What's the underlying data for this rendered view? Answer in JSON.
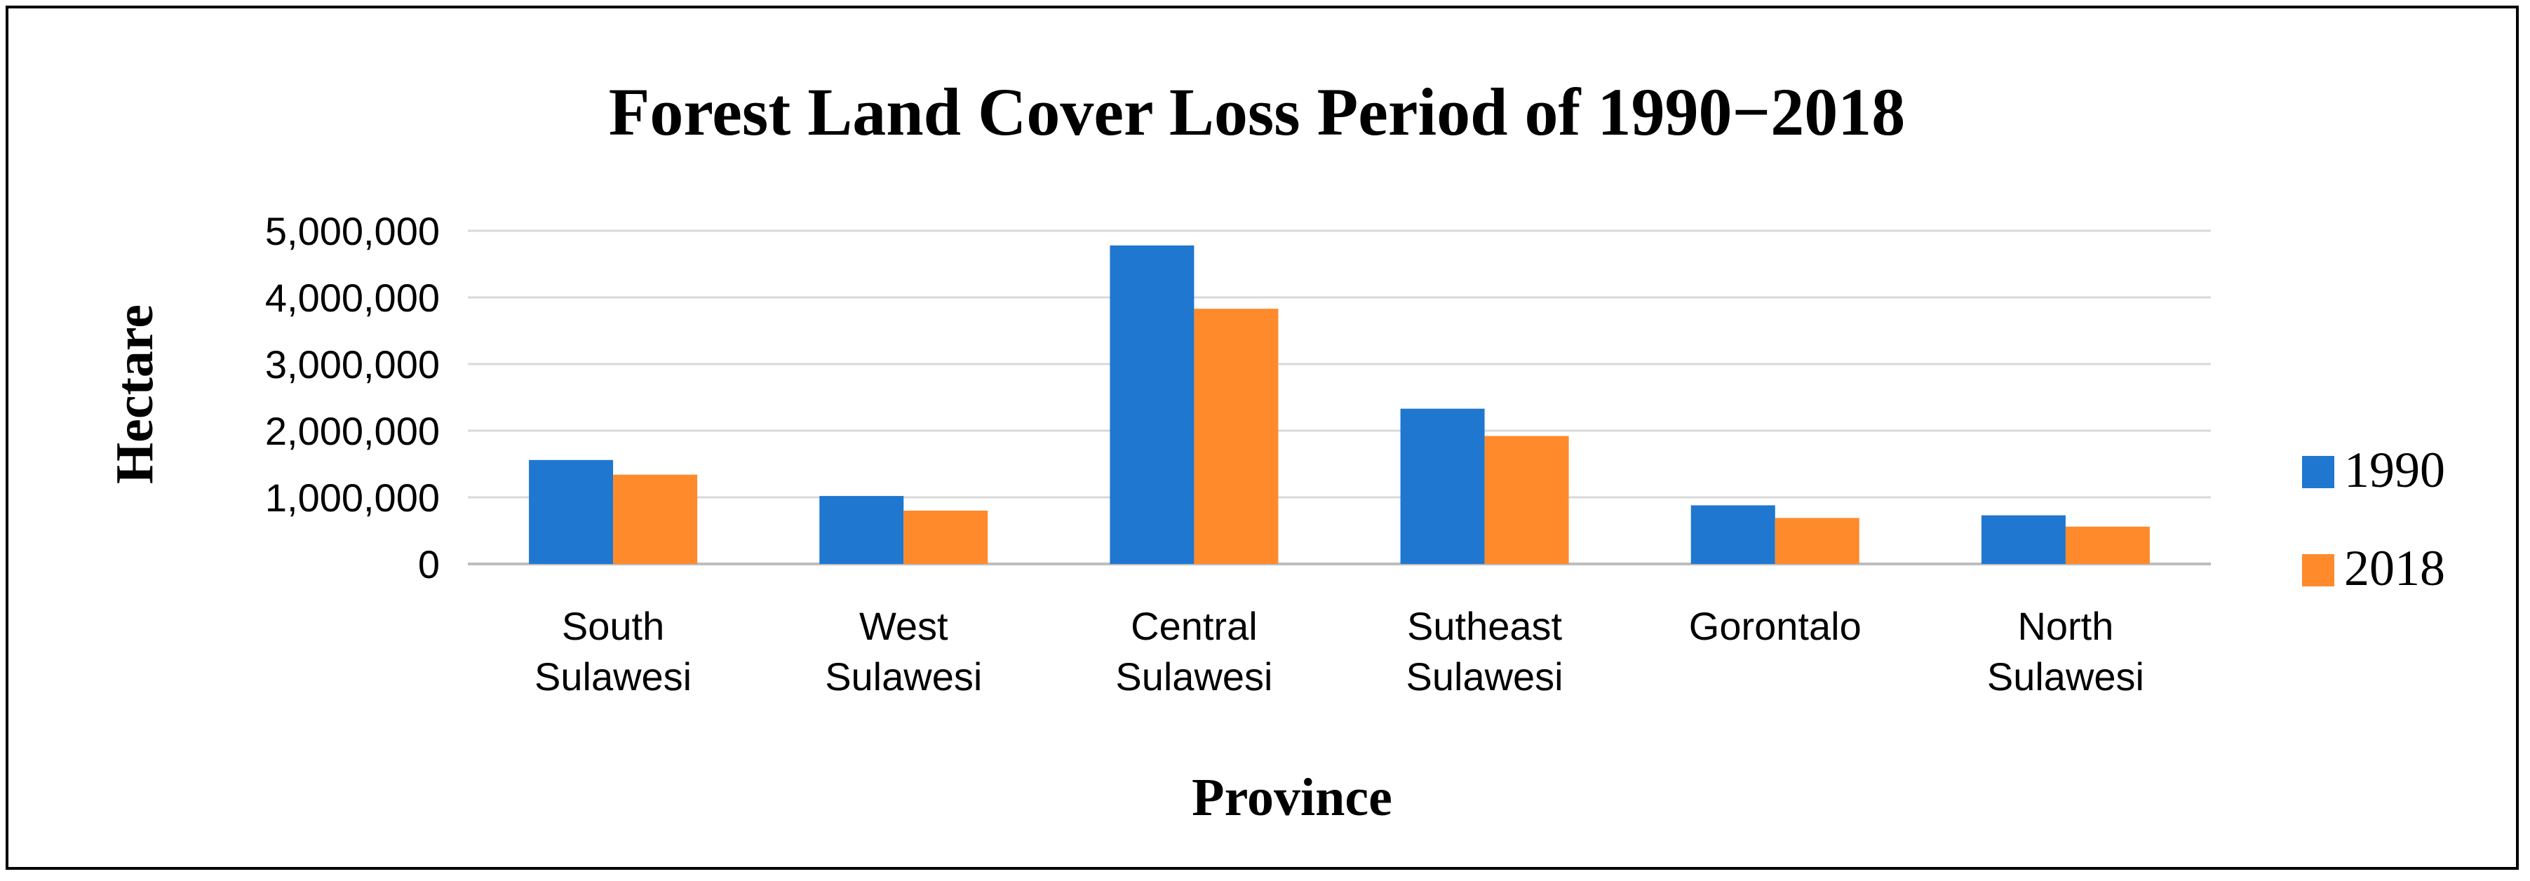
{
  "chart_data": {
    "type": "bar",
    "title": "Forest Land Cover Loss Period of 1990−2018",
    "xlabel": "Province",
    "ylabel": "Hectare",
    "categories": [
      [
        "South",
        "Sulawesi"
      ],
      [
        "West",
        "Sulawesi"
      ],
      [
        "Central",
        "Sulawesi"
      ],
      [
        "Sutheast",
        "Sulawesi"
      ],
      [
        "Gorontalo"
      ],
      [
        "North",
        "Sulawesi"
      ]
    ],
    "series": [
      {
        "name": "1990",
        "color": "#1f77cf",
        "values": [
          1560000,
          1020000,
          4780000,
          2330000,
          880000,
          730000
        ]
      },
      {
        "name": "2018",
        "color": "#ff8a2b",
        "values": [
          1340000,
          800000,
          3830000,
          1920000,
          690000,
          560000
        ]
      }
    ],
    "ylim": [
      0,
      5000000
    ],
    "yticks": [
      "0",
      "1,000,000",
      "2,000,000",
      "3,000,000",
      "4,000,000",
      "5,000,000"
    ],
    "grid": true,
    "legend_position": "right"
  }
}
